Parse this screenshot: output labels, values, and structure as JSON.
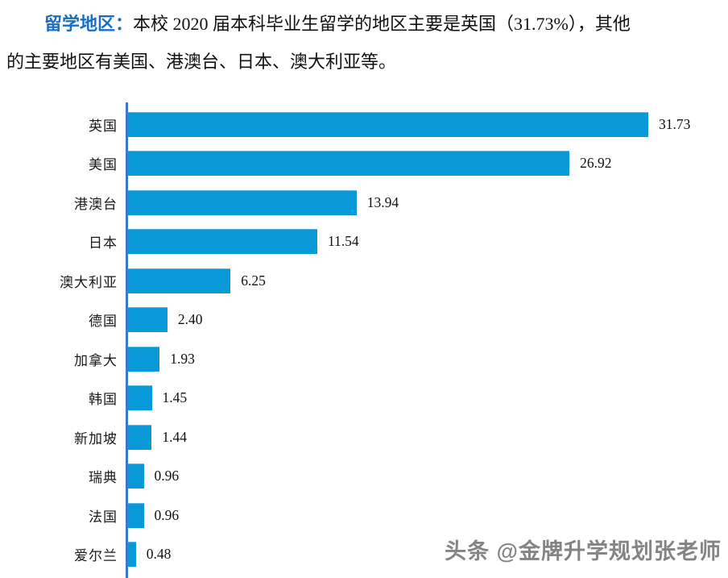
{
  "intro": {
    "lead": "留学地区：",
    "line1": "本校 2020 届本科毕业生留学的地区主要是英国（31.73%），其他",
    "line2": "的主要地区有美国、港澳台、日本、澳大利亚等。"
  },
  "chart_data": {
    "type": "bar",
    "orientation": "horizontal",
    "title": "",
    "xlabel": "",
    "ylabel": "",
    "categories": [
      "英国",
      "美国",
      "港澳台",
      "日本",
      "澳大利亚",
      "德国",
      "加拿大",
      "韩国",
      "新加坡",
      "瑞典",
      "法国",
      "爱尔兰"
    ],
    "values": [
      31.73,
      26.92,
      13.94,
      11.54,
      6.25,
      2.4,
      1.93,
      1.45,
      1.44,
      0.96,
      0.96,
      0.48
    ],
    "value_label_decimals": 2,
    "xlim": [
      0,
      33
    ],
    "grid": false,
    "legend": "none",
    "bar_color": "#0999d8",
    "axis_color": "#3b76d2"
  },
  "watermark": {
    "text": "头条 @金牌升学规划张老师"
  },
  "colors": {
    "lead_blue": "#1a6dc3",
    "bar_blue": "#0999d8",
    "axis_blue": "#3b76d2",
    "text_black": "#111111",
    "watermark_gray": "#6e6e6e"
  }
}
